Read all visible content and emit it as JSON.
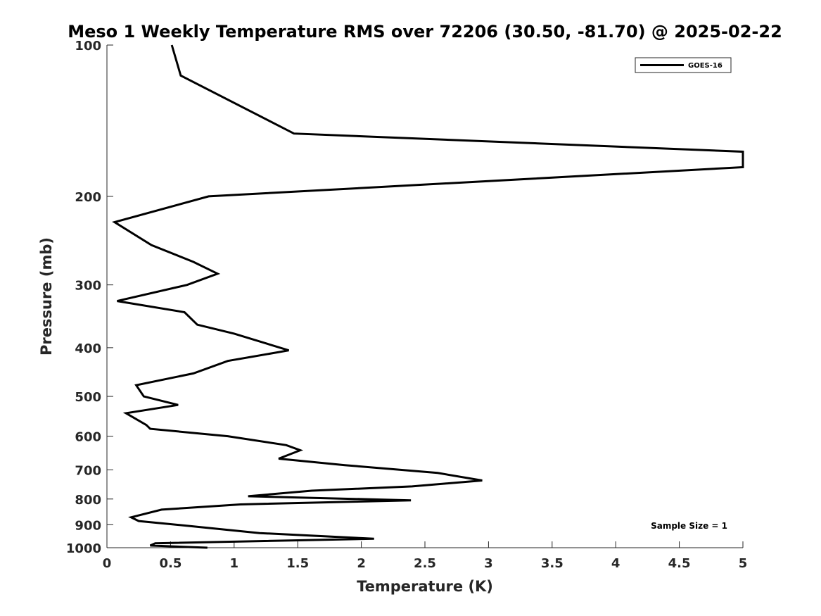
{
  "chart_data": {
    "type": "line",
    "title": "Meso 1 Weekly Temperature RMS over 72206 (30.50, -81.70) @ 2025-02-22",
    "xlabel": "Temperature (K)",
    "ylabel": "Pressure (mb)",
    "xlim": [
      0,
      5
    ],
    "ylim": [
      100,
      1000
    ],
    "y_scale": "log",
    "y_reversed": true,
    "grid": false,
    "legend_position": "top-right",
    "x_ticks": [
      0,
      0.5,
      1,
      1.5,
      2,
      2.5,
      3,
      3.5,
      4,
      4.5,
      5
    ],
    "x_tick_labels": [
      "0",
      "0.5",
      "1",
      "1.5",
      "2",
      "2.5",
      "3",
      "3.5",
      "4",
      "4.5",
      "5"
    ],
    "y_ticks": [
      100,
      200,
      300,
      400,
      500,
      600,
      700,
      800,
      900,
      1000
    ],
    "y_tick_labels": [
      "100",
      "200",
      "300",
      "400",
      "500",
      "600",
      "700",
      "800",
      "900",
      "1000"
    ],
    "series": [
      {
        "name": "GOES-16",
        "color": "#000000",
        "x": [
          0.51,
          0.58,
          1.47,
          5.0,
          5.0,
          0.8,
          0.06,
          0.35,
          0.68,
          0.87,
          0.63,
          0.08,
          0.61,
          0.71,
          1.0,
          1.43,
          0.95,
          0.68,
          0.23,
          0.29,
          0.56,
          0.15,
          0.31,
          0.34,
          0.95,
          1.41,
          1.52,
          1.35,
          1.87,
          2.6,
          2.95,
          2.4,
          1.61,
          1.11,
          2.39,
          1.05,
          0.43,
          0.19,
          0.25,
          0.64,
          1.2,
          2.1,
          0.38,
          0.34,
          0.79
        ],
        "y": [
          100,
          115,
          150,
          163,
          175,
          200,
          225,
          250,
          270,
          285,
          300,
          323,
          340,
          360,
          375,
          405,
          425,
          450,
          475,
          500,
          520,
          540,
          570,
          580,
          600,
          625,
          640,
          665,
          685,
          710,
          735,
          755,
          770,
          790,
          805,
          820,
          840,
          870,
          885,
          905,
          935,
          960,
          980,
          990,
          1000
        ]
      }
    ],
    "annotations": [
      {
        "text": "Sample Size = 1"
      }
    ]
  }
}
